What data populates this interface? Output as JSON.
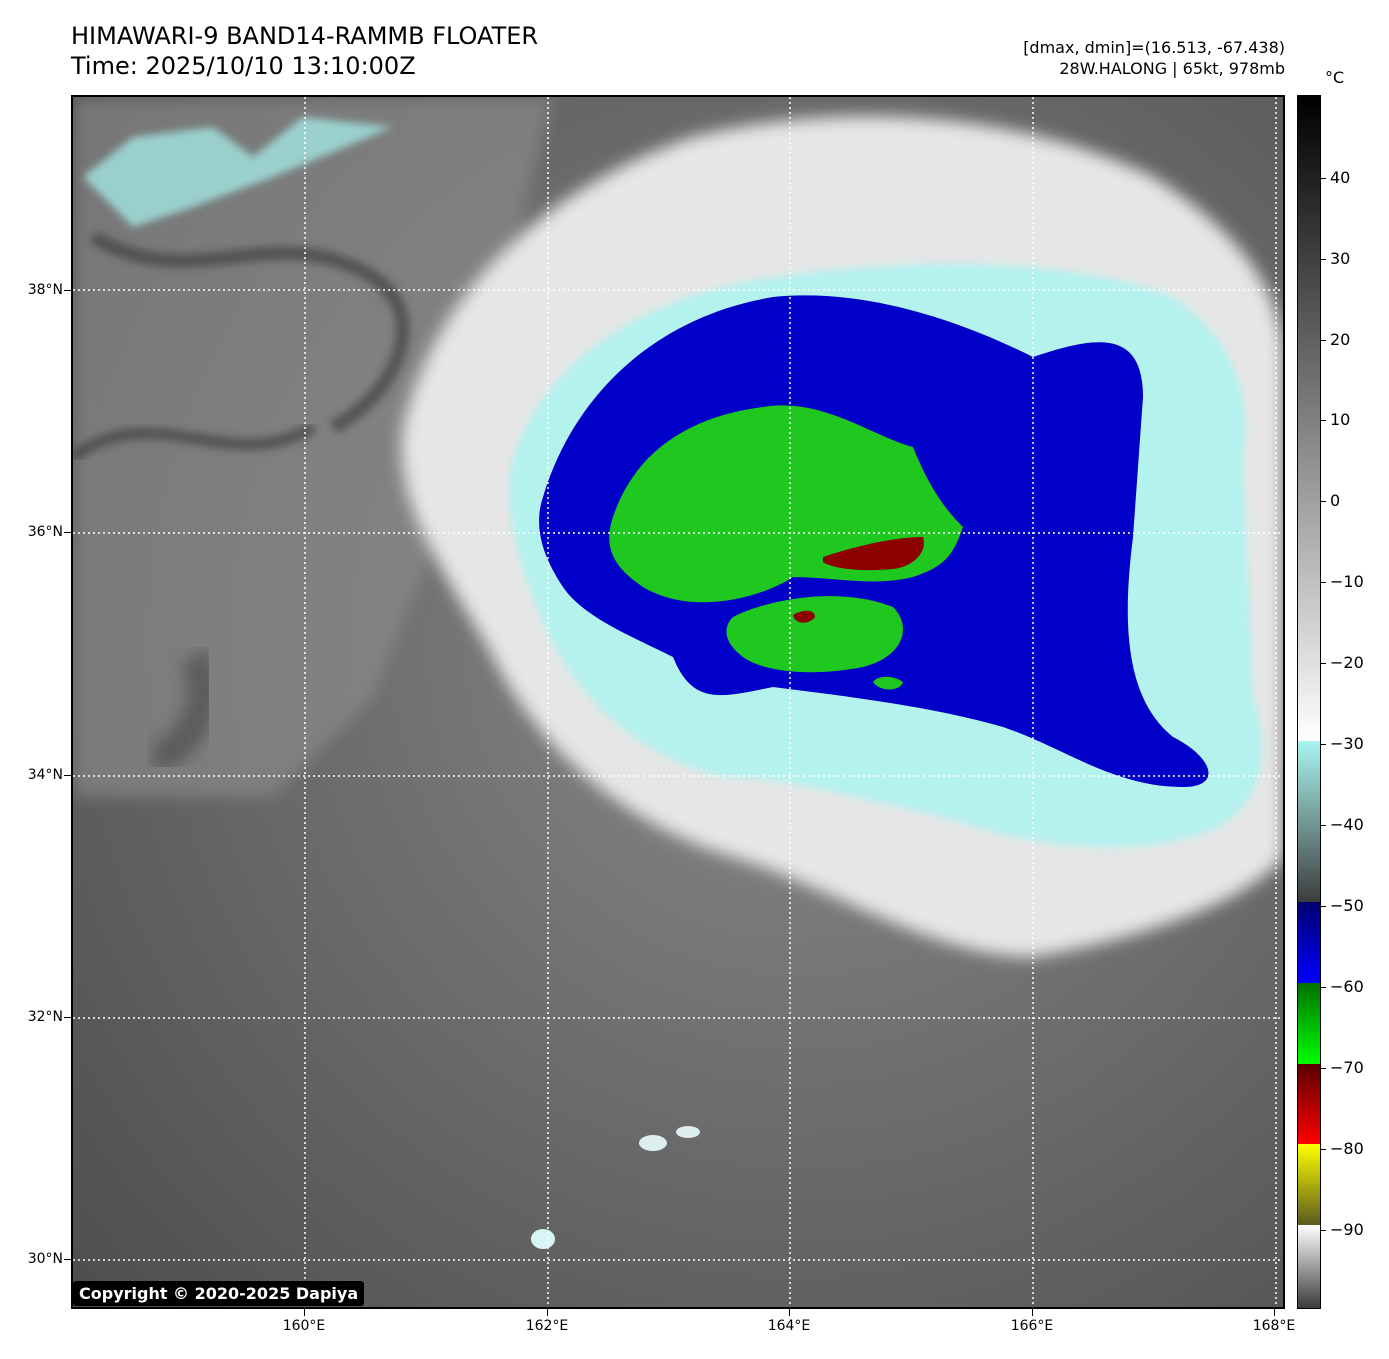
{
  "title": "HIMAWARI-9 BAND14-RAMMB FLOATER",
  "time": "Time: 2025/10/10 13:10:00Z",
  "dstats": "[dmax, dmin]=(16.513, -67.438)",
  "storm": "28W.HALONG | 65kt, 978mb",
  "colorbar_unit": "°C",
  "copyright": "Copyright © 2020-2025 Dapiya",
  "lat_labels": [
    "38°N",
    "36°N",
    "34°N",
    "32°N",
    "30°N"
  ],
  "lon_labels": [
    "160°E",
    "162°E",
    "164°E",
    "166°E",
    "168°E"
  ],
  "colorbar_labels": [
    "40",
    "30",
    "20",
    "10",
    "0",
    "−10",
    "−20",
    "−30",
    "−40",
    "−50",
    "−60",
    "−70",
    "−80",
    "−90"
  ],
  "colors": {
    "cyan": "#a8f5f0",
    "blue": "#0000c8",
    "green": "#1ec81e",
    "dark_red": "#8c0000"
  }
}
